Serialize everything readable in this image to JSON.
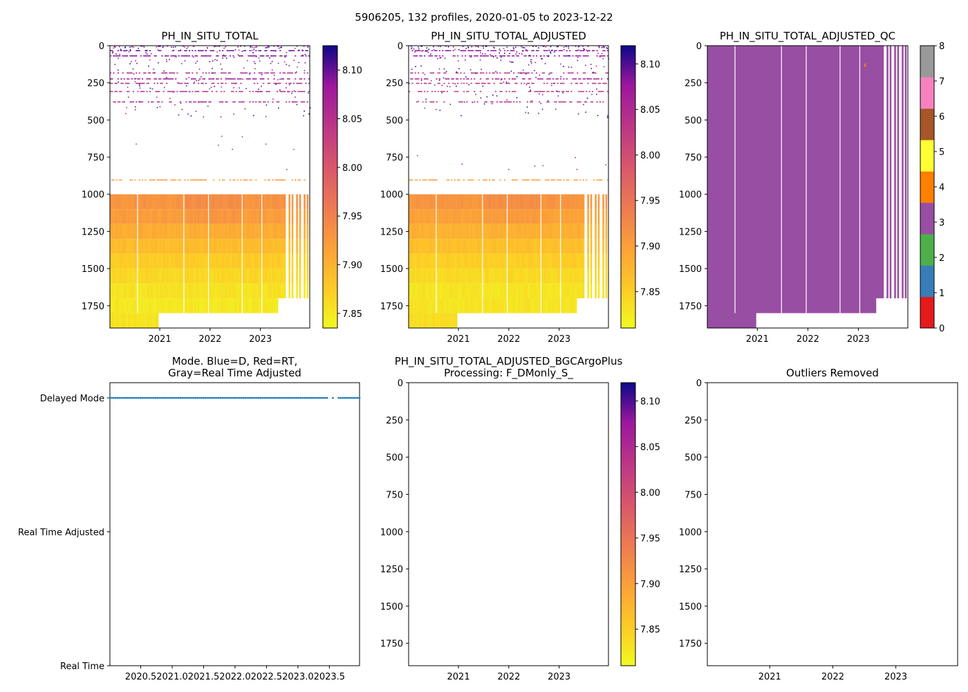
{
  "figure": {
    "suptitle": "5906205, 132 profiles, 2020-01-05 to 2023-12-22"
  },
  "chart_data": [
    {
      "type": "heatmap",
      "title": "PH_IN_SITU_TOTAL",
      "ylim": [
        1900,
        0
      ],
      "yticks": [
        "0",
        "250",
        "500",
        "750",
        "1000",
        "1250",
        "1500",
        "1750"
      ],
      "xlim": [
        2020.01,
        2023.98
      ],
      "xticks": [
        "2021",
        "2022",
        "2023"
      ],
      "colorbar": {
        "min": 7.835,
        "max": 8.125,
        "ticks": [
          "7.85",
          "7.90",
          "7.95",
          "8.00",
          "8.05",
          "8.10"
        ],
        "colormap": "plasma_r"
      },
      "dense_depth_start": 1000,
      "sparse_lines": [
        {
          "depth": 30,
          "value": 8.1
        },
        {
          "depth": 65,
          "value": 8.09
        },
        {
          "depth": 180,
          "value": 8.06
        },
        {
          "depth": 220,
          "value": 8.08
        },
        {
          "depth": 250,
          "value": 8.06
        },
        {
          "depth": 305,
          "value": 8.05
        },
        {
          "depth": 375,
          "value": 8.06
        },
        {
          "depth": 900,
          "value": 7.92
        }
      ],
      "depth_bands": [
        {
          "top": 1000,
          "value": 7.93
        },
        {
          "top": 1100,
          "value": 7.92
        },
        {
          "top": 1200,
          "value": 7.905
        },
        {
          "top": 1300,
          "value": 7.89
        },
        {
          "top": 1400,
          "value": 7.875
        },
        {
          "top": 1500,
          "value": 7.865
        },
        {
          "top": 1600,
          "value": 7.855
        },
        {
          "top": 1700,
          "value": 7.85
        },
        {
          "top": 1800,
          "value": 7.855
        }
      ]
    },
    {
      "type": "heatmap",
      "title": "PH_IN_SITU_TOTAL_ADJUSTED",
      "ylim": [
        1900,
        0
      ],
      "yticks": [
        "0",
        "250",
        "500",
        "750",
        "1000",
        "1250",
        "1500",
        "1750"
      ],
      "xlim": [
        2020.01,
        2023.98
      ],
      "xticks": [
        "2021",
        "2022",
        "2023"
      ],
      "colorbar": {
        "min": 7.81,
        "max": 8.12,
        "ticks": [
          "7.85",
          "7.90",
          "7.95",
          "8.00",
          "8.05",
          "8.10"
        ],
        "colormap": "plasma_r"
      },
      "dense_depth_start": 1000,
      "sparse_lines": [
        {
          "depth": 30,
          "value": 8.08
        },
        {
          "depth": 65,
          "value": 8.07
        },
        {
          "depth": 180,
          "value": 8.04
        },
        {
          "depth": 220,
          "value": 8.06
        },
        {
          "depth": 250,
          "value": 8.04
        },
        {
          "depth": 305,
          "value": 8.03
        },
        {
          "depth": 375,
          "value": 8.04
        },
        {
          "depth": 900,
          "value": 7.9
        }
      ],
      "depth_bands": [
        {
          "top": 1000,
          "value": 7.91
        },
        {
          "top": 1100,
          "value": 7.895
        },
        {
          "top": 1200,
          "value": 7.88
        },
        {
          "top": 1300,
          "value": 7.865
        },
        {
          "top": 1400,
          "value": 7.85
        },
        {
          "top": 1500,
          "value": 7.84
        },
        {
          "top": 1600,
          "value": 7.83
        },
        {
          "top": 1700,
          "value": 7.83
        },
        {
          "top": 1800,
          "value": 7.835
        }
      ]
    },
    {
      "type": "heatmap",
      "title": "PH_IN_SITU_TOTAL_ADJUSTED_QC",
      "ylim": [
        1900,
        0
      ],
      "yticks": [
        "0",
        "250",
        "500",
        "750",
        "1000",
        "1250",
        "1500",
        "1750"
      ],
      "xlim": [
        2020.01,
        2023.98
      ],
      "xticks": [
        "2021",
        "2022",
        "2023"
      ],
      "fill_value": 3,
      "flag_value": 4,
      "flag_at": {
        "x": 2023.12,
        "depth": 120
      },
      "colorbar": {
        "min": 0,
        "max": 8,
        "ticks": [
          "0",
          "1",
          "2",
          "3",
          "4",
          "5",
          "6",
          "7",
          "8"
        ],
        "classes": [
          {
            "value": 0,
            "color": "#e41a1c"
          },
          {
            "value": 1,
            "color": "#377eb8"
          },
          {
            "value": 2,
            "color": "#4daf4a"
          },
          {
            "value": 3,
            "color": "#984ea3"
          },
          {
            "value": 4,
            "color": "#ff7f00"
          },
          {
            "value": 5,
            "color": "#ffff33"
          },
          {
            "value": 6,
            "color": "#a65628"
          },
          {
            "value": 7,
            "color": "#f781bf"
          },
          {
            "value": 8,
            "color": "#999999"
          }
        ]
      }
    },
    {
      "type": "scatter",
      "title": "Mode. Blue=D, Red=RT,\nGray=Real Time Adjusted",
      "yticks": [
        "Delayed Mode",
        "Real Time Adjusted",
        "Real Time"
      ],
      "xlim": [
        2020.01,
        2023.98
      ],
      "xticks": [
        "2020.5",
        "2021.0",
        "2021.5",
        "2022.0",
        "2022.5",
        "2023.0",
        "2023.5"
      ],
      "points_value": "Delayed Mode",
      "points_color": "#1f77b4",
      "n_points": 132,
      "x_range": [
        2020.01,
        2023.98
      ]
    },
    {
      "type": "heatmap",
      "title": "PH_IN_SITU_TOTAL_ADJUSTED_BGCArgoPlus\nProcessing: F_DMonly_S_",
      "ylim": [
        1900,
        0
      ],
      "yticks": [
        "0",
        "250",
        "500",
        "750",
        "1000",
        "1250",
        "1500",
        "1750"
      ],
      "xlim": [
        2020.01,
        2023.98
      ],
      "xticks": [
        "2021",
        "2022",
        "2023"
      ],
      "colorbar": {
        "min": 7.81,
        "max": 8.12,
        "ticks": [
          "7.85",
          "7.90",
          "7.95",
          "8.00",
          "8.05",
          "8.10"
        ],
        "colormap": "plasma_r"
      },
      "empty": true
    },
    {
      "type": "heatmap",
      "title": "Outliers Removed",
      "ylim": [
        1900,
        0
      ],
      "yticks": [
        "0",
        "250",
        "500",
        "750",
        "1000",
        "1250",
        "1500",
        "1750"
      ],
      "xlim": [
        2020.01,
        2023.98
      ],
      "xticks": [
        "2021",
        "2022",
        "2023"
      ],
      "empty": true
    }
  ]
}
